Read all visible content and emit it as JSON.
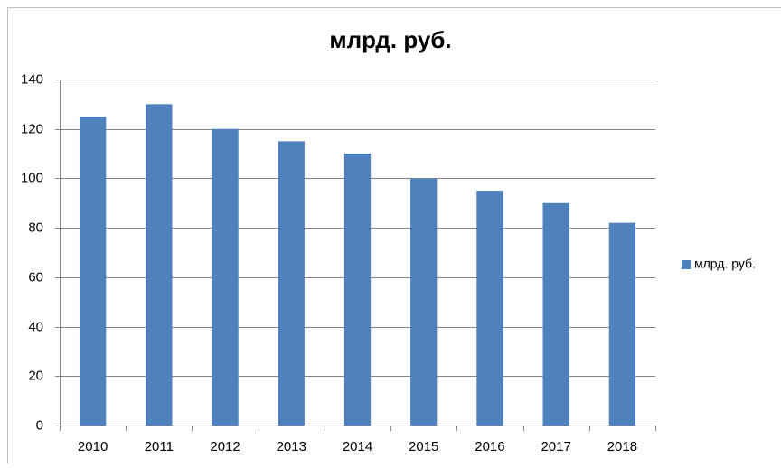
{
  "chart_data": {
    "type": "bar",
    "title": "млрд. руб.",
    "categories": [
      "2010",
      "2011",
      "2012",
      "2013",
      "2014",
      "2015",
      "2016",
      "2017",
      "2018"
    ],
    "series": [
      {
        "name": "млрд. руб.",
        "color": "#4f81bd",
        "values": [
          125,
          130,
          120,
          115,
          110,
          100,
          95,
          90,
          82
        ]
      }
    ],
    "ylim": [
      0,
      140
    ],
    "yticks": [
      0,
      20,
      40,
      60,
      80,
      100,
      120,
      140
    ],
    "grid": true,
    "legend": "right"
  }
}
